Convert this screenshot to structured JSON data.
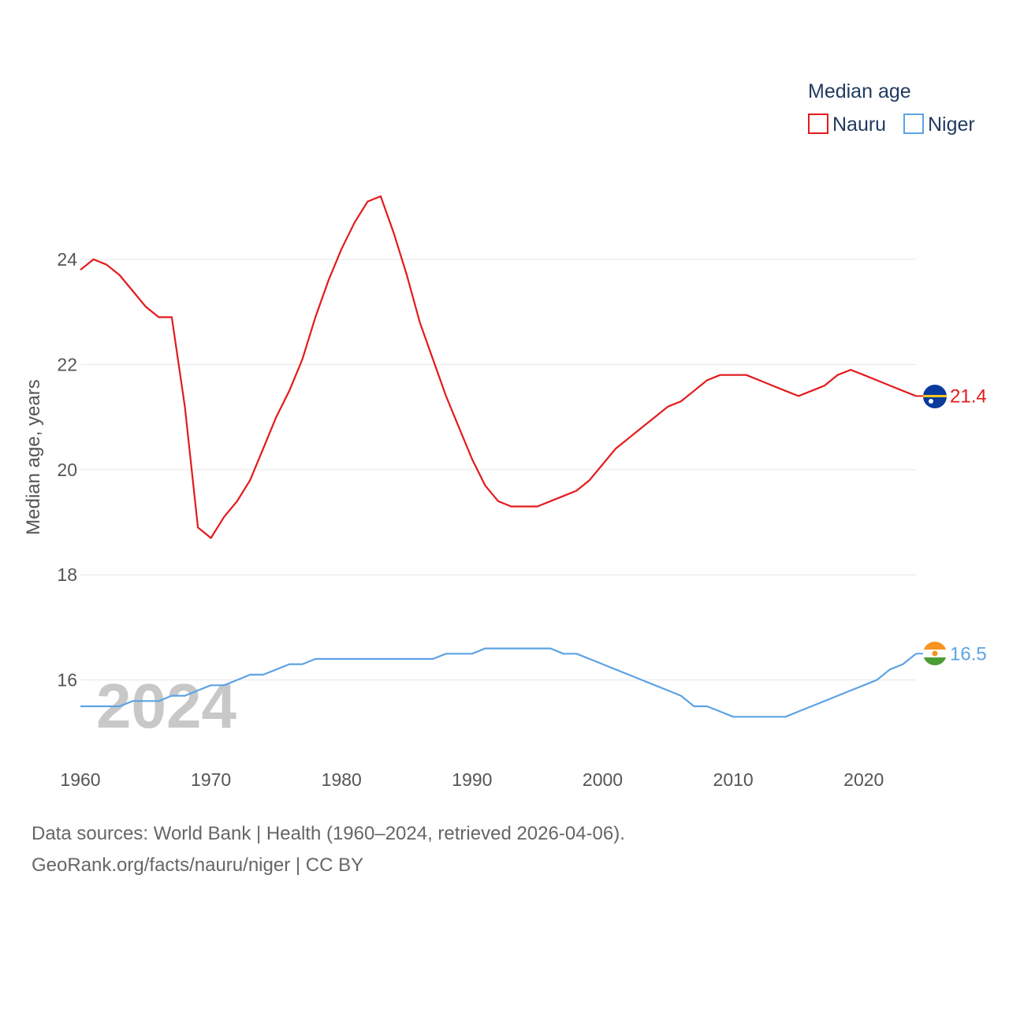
{
  "chart_data": {
    "type": "line",
    "ylabel": "Median age, years",
    "xlabel": "",
    "ylim": [
      14.5,
      25.5
    ],
    "xlim": [
      1960,
      2024
    ],
    "y_ticks": [
      16,
      18,
      20,
      22,
      24
    ],
    "x_ticks": [
      1960,
      1970,
      1980,
      1990,
      2000,
      2010,
      2020
    ],
    "grid": true,
    "legend_title": "Median age",
    "legend_position": "top-right",
    "year_label": "2024",
    "x": [
      1960,
      1961,
      1962,
      1963,
      1964,
      1965,
      1966,
      1967,
      1968,
      1969,
      1970,
      1971,
      1972,
      1973,
      1974,
      1975,
      1976,
      1977,
      1978,
      1979,
      1980,
      1981,
      1982,
      1983,
      1984,
      1985,
      1986,
      1987,
      1988,
      1989,
      1990,
      1991,
      1992,
      1993,
      1994,
      1995,
      1996,
      1997,
      1998,
      1999,
      2000,
      2001,
      2002,
      2003,
      2004,
      2005,
      2006,
      2007,
      2008,
      2009,
      2010,
      2011,
      2012,
      2013,
      2014,
      2015,
      2016,
      2017,
      2018,
      2019,
      2020,
      2021,
      2022,
      2023,
      2024
    ],
    "series": [
      {
        "name": "Nauru",
        "color": "#e31a1c",
        "end_label": "21.4",
        "flag": "nauru-flag",
        "values": [
          23.8,
          24.0,
          23.9,
          23.7,
          23.4,
          23.1,
          22.9,
          22.9,
          21.2,
          18.9,
          18.7,
          19.1,
          19.4,
          19.8,
          20.4,
          21.0,
          21.5,
          22.1,
          22.9,
          23.6,
          24.2,
          24.7,
          25.1,
          25.2,
          24.5,
          23.7,
          22.8,
          22.1,
          21.4,
          20.8,
          20.2,
          19.7,
          19.4,
          19.3,
          19.3,
          19.3,
          19.4,
          19.5,
          19.6,
          19.8,
          20.1,
          20.4,
          20.6,
          20.8,
          21.0,
          21.2,
          21.3,
          21.5,
          21.7,
          21.8,
          21.8,
          21.8,
          21.7,
          21.6,
          21.5,
          21.4,
          21.5,
          21.6,
          21.8,
          21.9,
          21.8,
          21.7,
          21.6,
          21.5,
          21.4
        ]
      },
      {
        "name": "Niger",
        "color": "#5ea3e4",
        "end_label": "16.5",
        "flag": "niger-flag",
        "values": [
          15.5,
          15.5,
          15.5,
          15.5,
          15.6,
          15.6,
          15.6,
          15.7,
          15.7,
          15.8,
          15.9,
          15.9,
          16.0,
          16.1,
          16.1,
          16.2,
          16.3,
          16.3,
          16.4,
          16.4,
          16.4,
          16.4,
          16.4,
          16.4,
          16.4,
          16.4,
          16.4,
          16.4,
          16.5,
          16.5,
          16.5,
          16.6,
          16.6,
          16.6,
          16.6,
          16.6,
          16.6,
          16.5,
          16.5,
          16.4,
          16.3,
          16.2,
          16.1,
          16.0,
          15.9,
          15.8,
          15.7,
          15.5,
          15.5,
          15.4,
          15.3,
          15.3,
          15.3,
          15.3,
          15.3,
          15.4,
          15.5,
          15.6,
          15.7,
          15.8,
          15.9,
          16.0,
          16.2,
          16.3,
          16.5
        ]
      }
    ]
  },
  "footer": {
    "line1": "Data sources: World Bank | Health (1960–2024, retrieved 2026-04-06).",
    "line2": "GeoRank.org/facts/nauru/niger | CC BY"
  }
}
